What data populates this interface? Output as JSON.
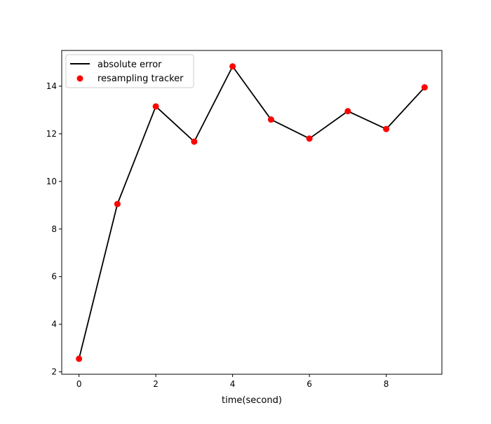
{
  "chart_data": {
    "type": "line",
    "title": "",
    "xlabel": "time(second)",
    "ylabel": "",
    "xlim": [
      -0.45,
      9.45
    ],
    "ylim": [
      1.9,
      15.5
    ],
    "x_ticks": [
      0,
      2,
      4,
      6,
      8
    ],
    "x_tick_labels": [
      "0",
      "2",
      "4",
      "6",
      "8"
    ],
    "y_ticks": [
      2,
      4,
      6,
      8,
      10,
      12,
      14
    ],
    "y_tick_labels": [
      "2",
      "4",
      "6",
      "8",
      "10",
      "12",
      "14"
    ],
    "grid": false,
    "legend_position": "top-left",
    "x": [
      0,
      1,
      2,
      3,
      4,
      5,
      6,
      7,
      8,
      9
    ],
    "series": [
      {
        "name": "absolute error",
        "kind": "line",
        "color": "#000000",
        "values": [
          2.55,
          9.05,
          13.15,
          11.67,
          14.83,
          12.6,
          11.8,
          12.95,
          12.2,
          13.95
        ]
      },
      {
        "name": "resampling tracker",
        "kind": "scatter",
        "color": "#ff0000",
        "values": [
          2.55,
          9.05,
          13.15,
          11.67,
          14.83,
          12.6,
          11.8,
          12.95,
          12.2,
          13.95
        ]
      }
    ]
  }
}
